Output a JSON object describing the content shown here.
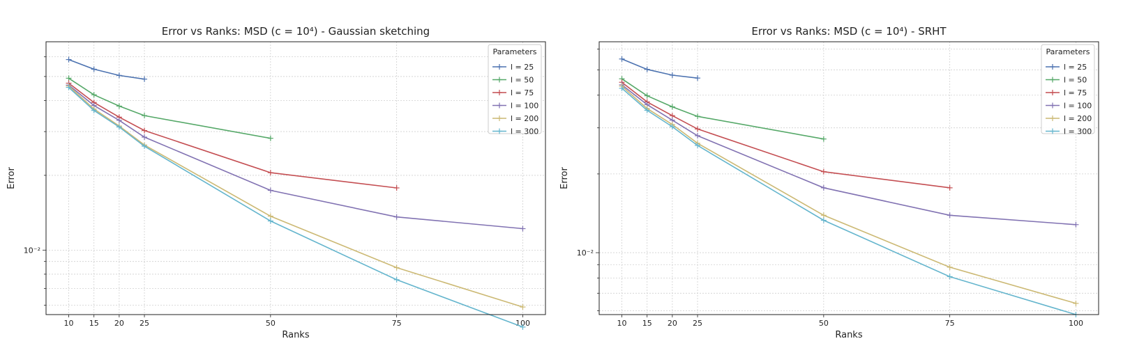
{
  "figure": {
    "background": "#ffffff"
  },
  "chart_data": [
    {
      "type": "line",
      "title": "Error vs Ranks: MSD (c = 10⁴) - Gaussian sketching",
      "xlabel": "Ranks",
      "ylabel": "Error",
      "x_ticks": [
        10,
        15,
        20,
        25,
        50,
        75,
        100
      ],
      "xlim": [
        5.5,
        104.5
      ],
      "y_scale": "log",
      "ylim": [
        0.0055,
        0.069
      ],
      "y_tick_label": "10⁻²",
      "y_tick_value": 0.01,
      "grid": true,
      "legend": {
        "title": "Parameters",
        "placement": "top-right"
      },
      "series": [
        {
          "name": "l = 25",
          "color": "#4c72b0",
          "x": [
            10,
            15,
            20,
            25
          ],
          "values": [
            0.0585,
            0.0535,
            0.0505,
            0.0488
          ]
        },
        {
          "name": "l = 50",
          "color": "#55a868",
          "x": [
            10,
            15,
            20,
            25,
            50
          ],
          "values": [
            0.0492,
            0.0422,
            0.038,
            0.0348,
            0.0282
          ]
        },
        {
          "name": "l = 75",
          "color": "#c44e52",
          "x": [
            10,
            15,
            20,
            25,
            50,
            75
          ],
          "values": [
            0.047,
            0.0393,
            0.0343,
            0.0303,
            0.0205,
            0.0178
          ]
        },
        {
          "name": "l = 100",
          "color": "#8172b2",
          "x": [
            10,
            15,
            20,
            25,
            50,
            75,
            100
          ],
          "values": [
            0.0462,
            0.0382,
            0.0333,
            0.0285,
            0.0174,
            0.0136,
            0.0122
          ]
        },
        {
          "name": "l = 200",
          "color": "#ccb974",
          "x": [
            10,
            15,
            20,
            25,
            50,
            75,
            100
          ],
          "values": [
            0.0458,
            0.037,
            0.0316,
            0.0265,
            0.0137,
            0.0085,
            0.0059
          ]
        },
        {
          "name": "l = 300",
          "color": "#64b5cd",
          "x": [
            10,
            15,
            20,
            25,
            50,
            75,
            100
          ],
          "values": [
            0.0452,
            0.0365,
            0.0313,
            0.0262,
            0.0131,
            0.0076,
            0.0049
          ]
        }
      ]
    },
    {
      "type": "line",
      "title": "Error vs Ranks: MSD (c = 10⁴) - SRHT",
      "xlabel": "Ranks",
      "ylabel": "Error",
      "x_ticks": [
        10,
        15,
        20,
        25,
        50,
        75,
        100
      ],
      "xlim": [
        5.5,
        104.5
      ],
      "y_scale": "log",
      "ylim": [
        0.0058,
        0.064
      ],
      "y_tick_label": "10⁻²",
      "y_tick_value": 0.01,
      "grid": true,
      "legend": {
        "title": "Parameters",
        "placement": "top-right"
      },
      "series": [
        {
          "name": "l = 25",
          "color": "#4c72b0",
          "x": [
            10,
            15,
            20,
            25
          ],
          "values": [
            0.055,
            0.0502,
            0.0477,
            0.0465
          ]
        },
        {
          "name": "l = 50",
          "color": "#55a868",
          "x": [
            10,
            15,
            20,
            25,
            50
          ],
          "values": [
            0.0462,
            0.0398,
            0.0361,
            0.0332,
            0.0272
          ]
        },
        {
          "name": "l = 75",
          "color": "#c44e52",
          "x": [
            10,
            15,
            20,
            25,
            50,
            75
          ],
          "values": [
            0.0448,
            0.0377,
            0.0334,
            0.0297,
            0.0204,
            0.0177
          ]
        },
        {
          "name": "l = 100",
          "color": "#8172b2",
          "x": [
            10,
            15,
            20,
            25,
            50,
            75,
            100
          ],
          "values": [
            0.0438,
            0.0368,
            0.0321,
            0.028,
            0.0177,
            0.0139,
            0.0128
          ]
        },
        {
          "name": "l = 200",
          "color": "#ccb974",
          "x": [
            10,
            15,
            20,
            25,
            50,
            75,
            100
          ],
          "values": [
            0.0433,
            0.0356,
            0.0309,
            0.0262,
            0.0139,
            0.0088,
            0.0064
          ]
        },
        {
          "name": "l = 300",
          "color": "#64b5cd",
          "x": [
            10,
            15,
            20,
            25,
            50,
            75,
            100
          ],
          "values": [
            0.0425,
            0.035,
            0.0303,
            0.0257,
            0.0133,
            0.0081,
            0.0058
          ]
        }
      ]
    }
  ]
}
